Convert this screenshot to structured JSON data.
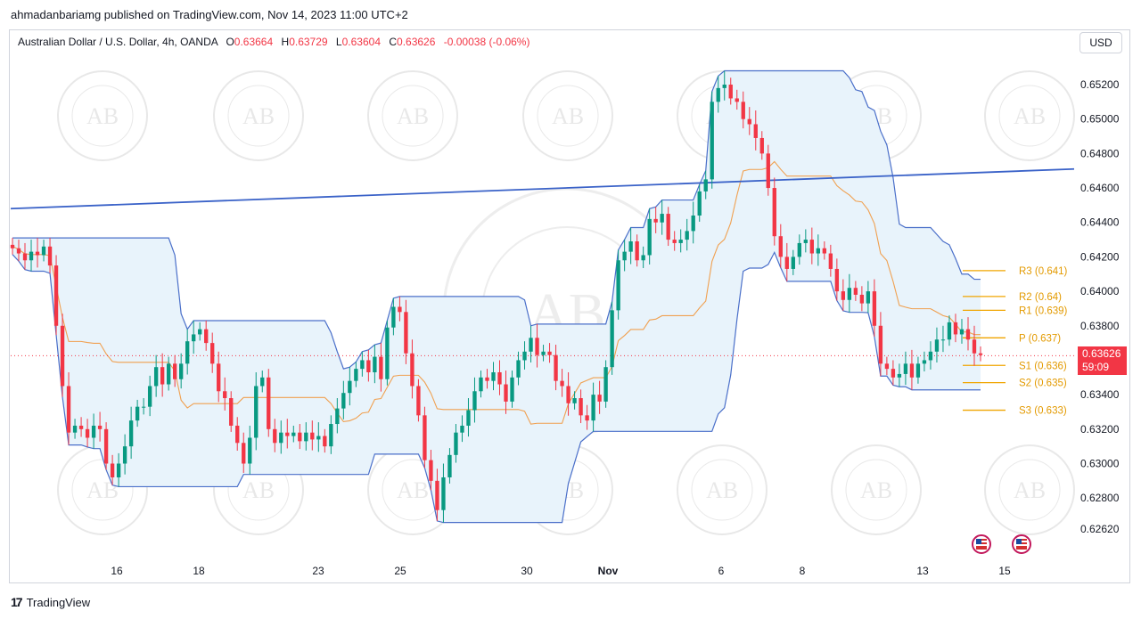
{
  "publisher_line": "ahmadanbariamg published on TradingView.com, Nov 14, 2023 11:00 UTC+2",
  "legend": {
    "symbol": "Australian Dollar / U.S. Dollar, 4h, OANDA",
    "o_label": "O",
    "o_value": "0.63664",
    "h_label": "H",
    "h_value": "0.63729",
    "l_label": "L",
    "l_value": "0.63604",
    "c_label": "C",
    "c_value": "0.63626",
    "change": "-0.00038 (-0.06%)"
  },
  "currency_button": "USD",
  "current_price": {
    "value": "0.63626",
    "countdown": "59:09"
  },
  "footer": {
    "brand_mark": "17",
    "brand": "TradingView"
  },
  "watermark_text": "AB",
  "colors": {
    "up": "#089981",
    "down": "#f23645",
    "band_line": "#4a6fc9",
    "band_fill": "#e8f3fb",
    "basis": "#f0a050",
    "pivot": "#f0a500",
    "trendline": "#3a62c8"
  },
  "chart_data": {
    "type": "candlestick",
    "ylim": [
      0.625,
      0.6535
    ],
    "y_ticks": [
      "0.65200",
      "0.65000",
      "0.64800",
      "0.64600",
      "0.64400",
      "0.64200",
      "0.64000",
      "0.63800",
      "0.63600",
      "0.63400",
      "0.63200",
      "0.63000",
      "0.62800",
      "0.62620"
    ],
    "y_tick_values": [
      0.652,
      0.65,
      0.648,
      0.646,
      0.644,
      0.642,
      0.64,
      0.638,
      0.636,
      0.634,
      0.632,
      0.63,
      0.628,
      0.6262
    ],
    "x_ticks": [
      {
        "label": "16",
        "bold": false
      },
      {
        "label": "18",
        "bold": false
      },
      {
        "label": "23",
        "bold": false
      },
      {
        "label": "25",
        "bold": false
      },
      {
        "label": "30",
        "bold": false
      },
      {
        "label": "Nov",
        "bold": true
      },
      {
        "label": "6",
        "bold": false
      },
      {
        "label": "8",
        "bold": false
      },
      {
        "label": "13",
        "bold": false
      },
      {
        "label": "15",
        "bold": false
      }
    ],
    "closes": [
      0.6425,
      0.6422,
      0.6418,
      0.6423,
      0.6421,
      0.6426,
      0.6415,
      0.638,
      0.6345,
      0.6318,
      0.6322,
      0.632,
      0.6315,
      0.6322,
      0.632,
      0.63,
      0.6292,
      0.63,
      0.631,
      0.6325,
      0.6333,
      0.6333,
      0.6345,
      0.6356,
      0.6346,
      0.6358,
      0.6349,
      0.6358,
      0.6371,
      0.6375,
      0.6378,
      0.637,
      0.6358,
      0.6342,
      0.6338,
      0.6322,
      0.6312,
      0.63,
      0.6315,
      0.6345,
      0.635,
      0.632,
      0.6312,
      0.6318,
      0.6316,
      0.6318,
      0.6313,
      0.6318,
      0.6314,
      0.6316,
      0.631,
      0.6323,
      0.6332,
      0.6341,
      0.6348,
      0.6355,
      0.636,
      0.6353,
      0.6362,
      0.6349,
      0.6379,
      0.6391,
      0.6388,
      0.6364,
      0.6345,
      0.6328,
      0.6302,
      0.629,
      0.6273,
      0.6292,
      0.6305,
      0.6318,
      0.6322,
      0.6331,
      0.6342,
      0.635,
      0.6348,
      0.6353,
      0.6346,
      0.6336,
      0.635,
      0.636,
      0.6365,
      0.6373,
      0.6363,
      0.6365,
      0.6363,
      0.6348,
      0.6345,
      0.6335,
      0.6338,
      0.6328,
      0.6325,
      0.634,
      0.6336,
      0.6356,
      0.6389,
      0.6418,
      0.6423,
      0.6429,
      0.6418,
      0.6421,
      0.6442,
      0.644,
      0.6445,
      0.643,
      0.6428,
      0.643,
      0.6435,
      0.6444,
      0.6458,
      0.6465,
      0.651,
      0.6518,
      0.652,
      0.6512,
      0.651,
      0.65,
      0.6497,
      0.6489,
      0.648,
      0.646,
      0.6432,
      0.642,
      0.6413,
      0.642,
      0.6428,
      0.643,
      0.6422,
      0.6425,
      0.6422,
      0.6413,
      0.64,
      0.6395,
      0.6402,
      0.6398,
      0.6393,
      0.64,
      0.638,
      0.6358,
      0.6355,
      0.635,
      0.6352,
      0.6358,
      0.635,
      0.6358,
      0.636,
      0.6365,
      0.6372,
      0.6372,
      0.6382,
      0.6375,
      0.6378,
      0.6372,
      0.6364,
      0.6363
    ],
    "bollinger": {
      "upper_label": "band",
      "note": "channel"
    },
    "pivots": [
      {
        "label": "R3 (0.641)",
        "value": 0.6412
      },
      {
        "label": "R2 (0.64)",
        "value": 0.6397
      },
      {
        "label": "R1 (0.639)",
        "value": 0.6389
      },
      {
        "label": "P (0.637)",
        "value": 0.6373
      },
      {
        "label": "S1 (0.636)",
        "value": 0.6357
      },
      {
        "label": "S2 (0.635)",
        "value": 0.6347
      },
      {
        "label": "S3 (0.633)",
        "value": 0.6331
      }
    ],
    "trendline": {
      "start": 0.6448,
      "end": 0.6471
    },
    "current_price_line": 0.63626
  }
}
